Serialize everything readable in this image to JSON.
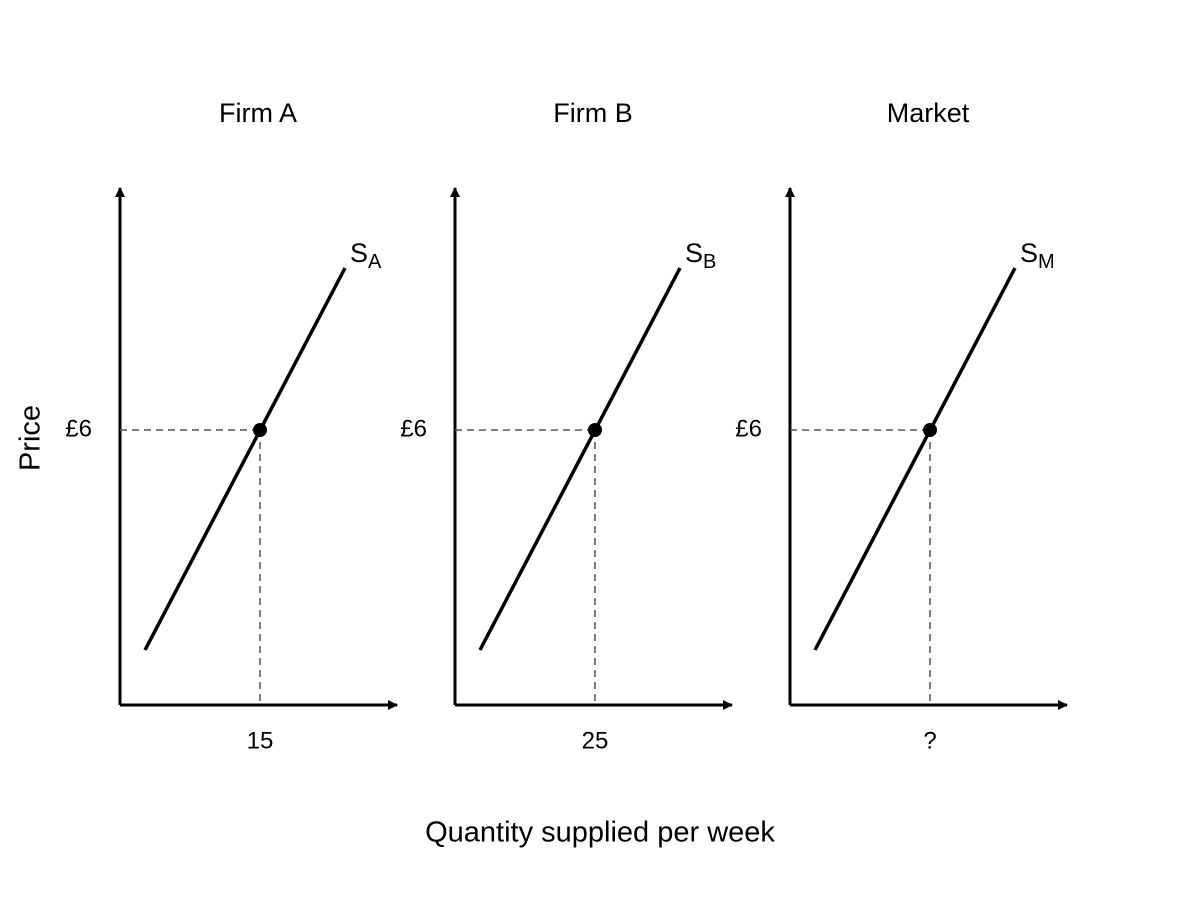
{
  "y_axis_label": "Price",
  "x_axis_label": "Quantity supplied per week",
  "panels": [
    {
      "title": "Firm A",
      "curve": "S",
      "subscript": "A",
      "price": "£6",
      "quantity": "15"
    },
    {
      "title": "Firm B",
      "curve": "S",
      "subscript": "B",
      "price": "£6",
      "quantity": "25"
    },
    {
      "title": "Market",
      "curve": "S",
      "subscript": "M",
      "price": "£6",
      "quantity": "?"
    }
  ]
}
